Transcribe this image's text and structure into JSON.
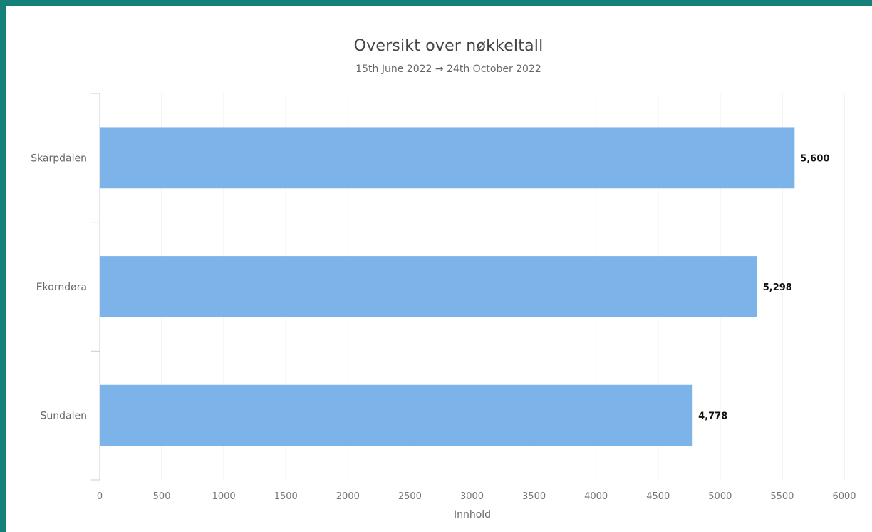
{
  "chart_data": {
    "type": "bar",
    "orientation": "horizontal",
    "title": "Oversikt over nøkkeltall",
    "subtitle": "15th June 2022 → 24th October 2022",
    "xlabel": "Innhold",
    "ylabel": "",
    "categories": [
      "Skarpdalen",
      "Ekorndøra",
      "Sundalen"
    ],
    "values": [
      5600,
      5298,
      4778
    ],
    "value_labels": [
      "5,600",
      "5,298",
      "4,778"
    ],
    "xlim": [
      0,
      6000
    ],
    "x_ticks": [
      0,
      500,
      1000,
      1500,
      2000,
      2500,
      3000,
      3500,
      4000,
      4500,
      5000,
      5500,
      6000
    ],
    "x_tick_labels": [
      "0",
      "500",
      "1000",
      "1500",
      "2000",
      "2500",
      "3000",
      "3500",
      "4000",
      "4500",
      "5000",
      "5500",
      "6000"
    ],
    "grid": true,
    "legend": "none",
    "colors": {
      "bar": "#7cb4ea",
      "grid": "#e6e6e6",
      "frame": "#148078"
    }
  }
}
